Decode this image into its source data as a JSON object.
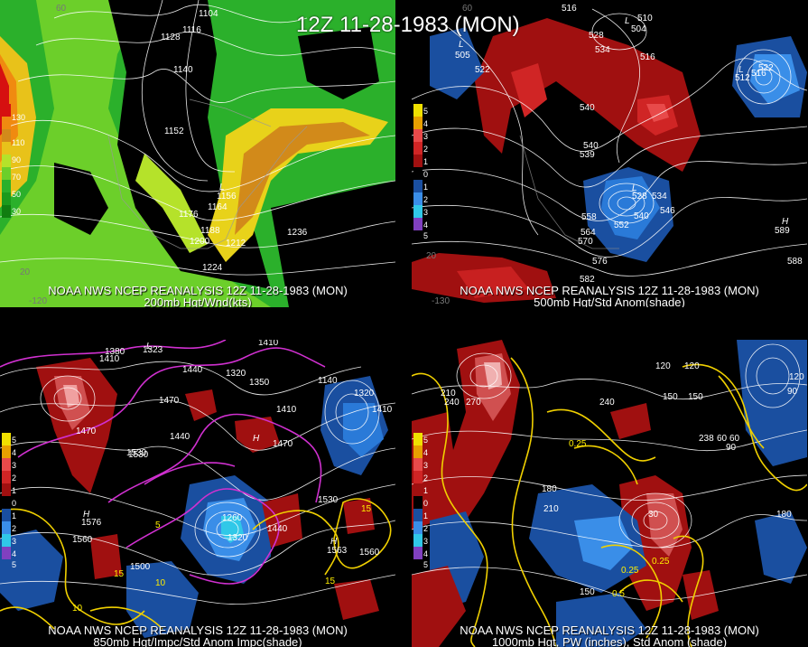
{
  "main_title": "12Z 11-28-1983 (MON)",
  "panels": [
    {
      "caption_line1": "NOAA NWS NCEP REANALYSIS 12Z 11-28-1983 (MON)",
      "caption_line2": "200mb Hgt/Wnd(kts)",
      "colorbar": [
        "130",
        "110",
        "90",
        "70",
        "50",
        "30"
      ],
      "height_labels": [
        "1104",
        "1116",
        "1128",
        "1140",
        "1152",
        "1156",
        "1164",
        "1176",
        "1188",
        "1200",
        "1212",
        "1224",
        "1236"
      ],
      "axis_labels": [
        "60",
        "-120",
        "20"
      ]
    },
    {
      "caption_line1": "NOAA NWS NCEP REANALYSIS 12Z 11-28-1983 (MON)",
      "caption_line2": "500mb Hgt/Std Anom(shade)",
      "colorbar": [
        "5",
        "4",
        "3",
        "2",
        "1",
        "0",
        "1",
        "2",
        "3",
        "4",
        "5"
      ],
      "height_labels": [
        "516",
        "510",
        "504",
        "528",
        "534",
        "516",
        "505",
        "522",
        "540",
        "540",
        "539",
        "528",
        "534",
        "546",
        "540",
        "552",
        "558",
        "564",
        "570",
        "576",
        "582",
        "588",
        "522",
        "516",
        "512",
        "589"
      ],
      "axis_labels": [
        "60",
        "20",
        "-130"
      ]
    },
    {
      "caption_line1": "NOAA NWS NCEP REANALYSIS 12Z 11-28-1983 (MON)",
      "caption_line2": "850mb Hgt/Impc/Std Anom Impc(shade)",
      "colorbar": [
        "5",
        "4",
        "3",
        "2",
        "1",
        "0",
        "1",
        "2",
        "3",
        "4",
        "5"
      ],
      "height_labels": [
        "1380",
        "1410",
        "1323",
        "1440",
        "1320",
        "1350",
        "1410",
        "1470",
        "1440",
        "1470",
        "1530",
        "1410",
        "1140",
        "1320",
        "1410",
        "1470",
        "1530",
        "1260",
        "1320",
        "1440",
        "1560",
        "1500",
        "1560",
        "1530",
        "1576",
        "1563"
      ],
      "impc_labels": [
        "15",
        "10",
        "5",
        "15",
        "10",
        "15"
      ]
    },
    {
      "caption_line1": "NOAA NWS NCEP REANALYSIS 12Z 11-28-1983 (MON)",
      "caption_line2": "1000mb Hgt, PW (inches), Std Anom (shade)",
      "colorbar": [
        "5",
        "4",
        "3",
        "2",
        "1",
        "0",
        "1",
        "2",
        "3",
        "4",
        "5"
      ],
      "height_labels": [
        "120",
        "150",
        "210",
        "240",
        "270",
        "180",
        "210",
        "238",
        "240",
        "150",
        "120",
        "90",
        "60",
        "180",
        "30",
        "150",
        "120",
        "90",
        "60"
      ],
      "pw_labels": [
        "0.25",
        "0.25",
        "0.25",
        "0.5"
      ]
    }
  ],
  "low_symbols": [
    "L",
    "L",
    "L",
    "L",
    "L",
    "L"
  ],
  "high_symbols": [
    "H",
    "H",
    "H",
    "H"
  ]
}
